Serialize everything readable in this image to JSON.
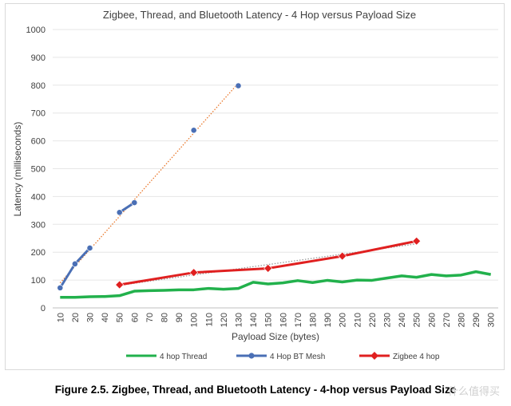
{
  "chart_data": {
    "type": "line",
    "title": "Zigbee, Thread, and Bluetooth Latency - 4 Hop versus Payload Size",
    "xlabel": "Payload Size (bytes)",
    "ylabel": "Latency (milliseconds)",
    "ylim": [
      0,
      1000
    ],
    "yticks": [
      0,
      100,
      200,
      300,
      400,
      500,
      600,
      700,
      800,
      900,
      1000
    ],
    "categories": [
      10,
      20,
      30,
      40,
      50,
      60,
      70,
      80,
      90,
      100,
      110,
      120,
      130,
      140,
      150,
      160,
      170,
      180,
      190,
      200,
      210,
      220,
      230,
      240,
      250,
      260,
      270,
      280,
      290,
      300
    ],
    "grid": "horizontal",
    "legend_position": "bottom",
    "series": [
      {
        "name": "4 hop Thread",
        "color": "#22b14c",
        "marker": "none",
        "x": [
          10,
          20,
          30,
          40,
          50,
          60,
          70,
          80,
          90,
          100,
          110,
          120,
          130,
          140,
          150,
          160,
          170,
          180,
          190,
          200,
          210,
          220,
          230,
          240,
          250,
          260,
          270,
          280,
          290,
          300
        ],
        "values": [
          38,
          38,
          40,
          41,
          44,
          60,
          62,
          63,
          65,
          65,
          70,
          67,
          70,
          92,
          86,
          90,
          98,
          91,
          99,
          93,
          100,
          99,
          107,
          115,
          110,
          120,
          115,
          118,
          130,
          120
        ]
      },
      {
        "name": "4 Hop BT Mesh",
        "color": "#4a6fb5",
        "marker": "circle",
        "segments": [
          [
            10,
            20,
            30
          ],
          [
            50,
            60
          ],
          [
            100
          ],
          [
            130
          ]
        ],
        "x": [
          10,
          20,
          30,
          50,
          60,
          100,
          130
        ],
        "values": [
          72,
          158,
          215,
          343,
          378,
          638,
          798
        ]
      },
      {
        "name": "Zigbee 4 hop",
        "color": "#e02020",
        "marker": "diamond",
        "x": [
          50,
          100,
          150,
          200,
          250
        ],
        "values": [
          83,
          127,
          142,
          186,
          240
        ]
      }
    ],
    "trendlines": [
      {
        "of": "4 Hop BT Mesh",
        "color": "#e9772a",
        "style": "dotted"
      },
      {
        "of": "Zigbee 4 hop",
        "color": "#999999",
        "style": "dotted"
      }
    ]
  },
  "caption": "Figure 2.5.  Zigbee, Thread, and Bluetooth Latency - 4-hop versus Payload Size",
  "watermark": "什么值得买"
}
